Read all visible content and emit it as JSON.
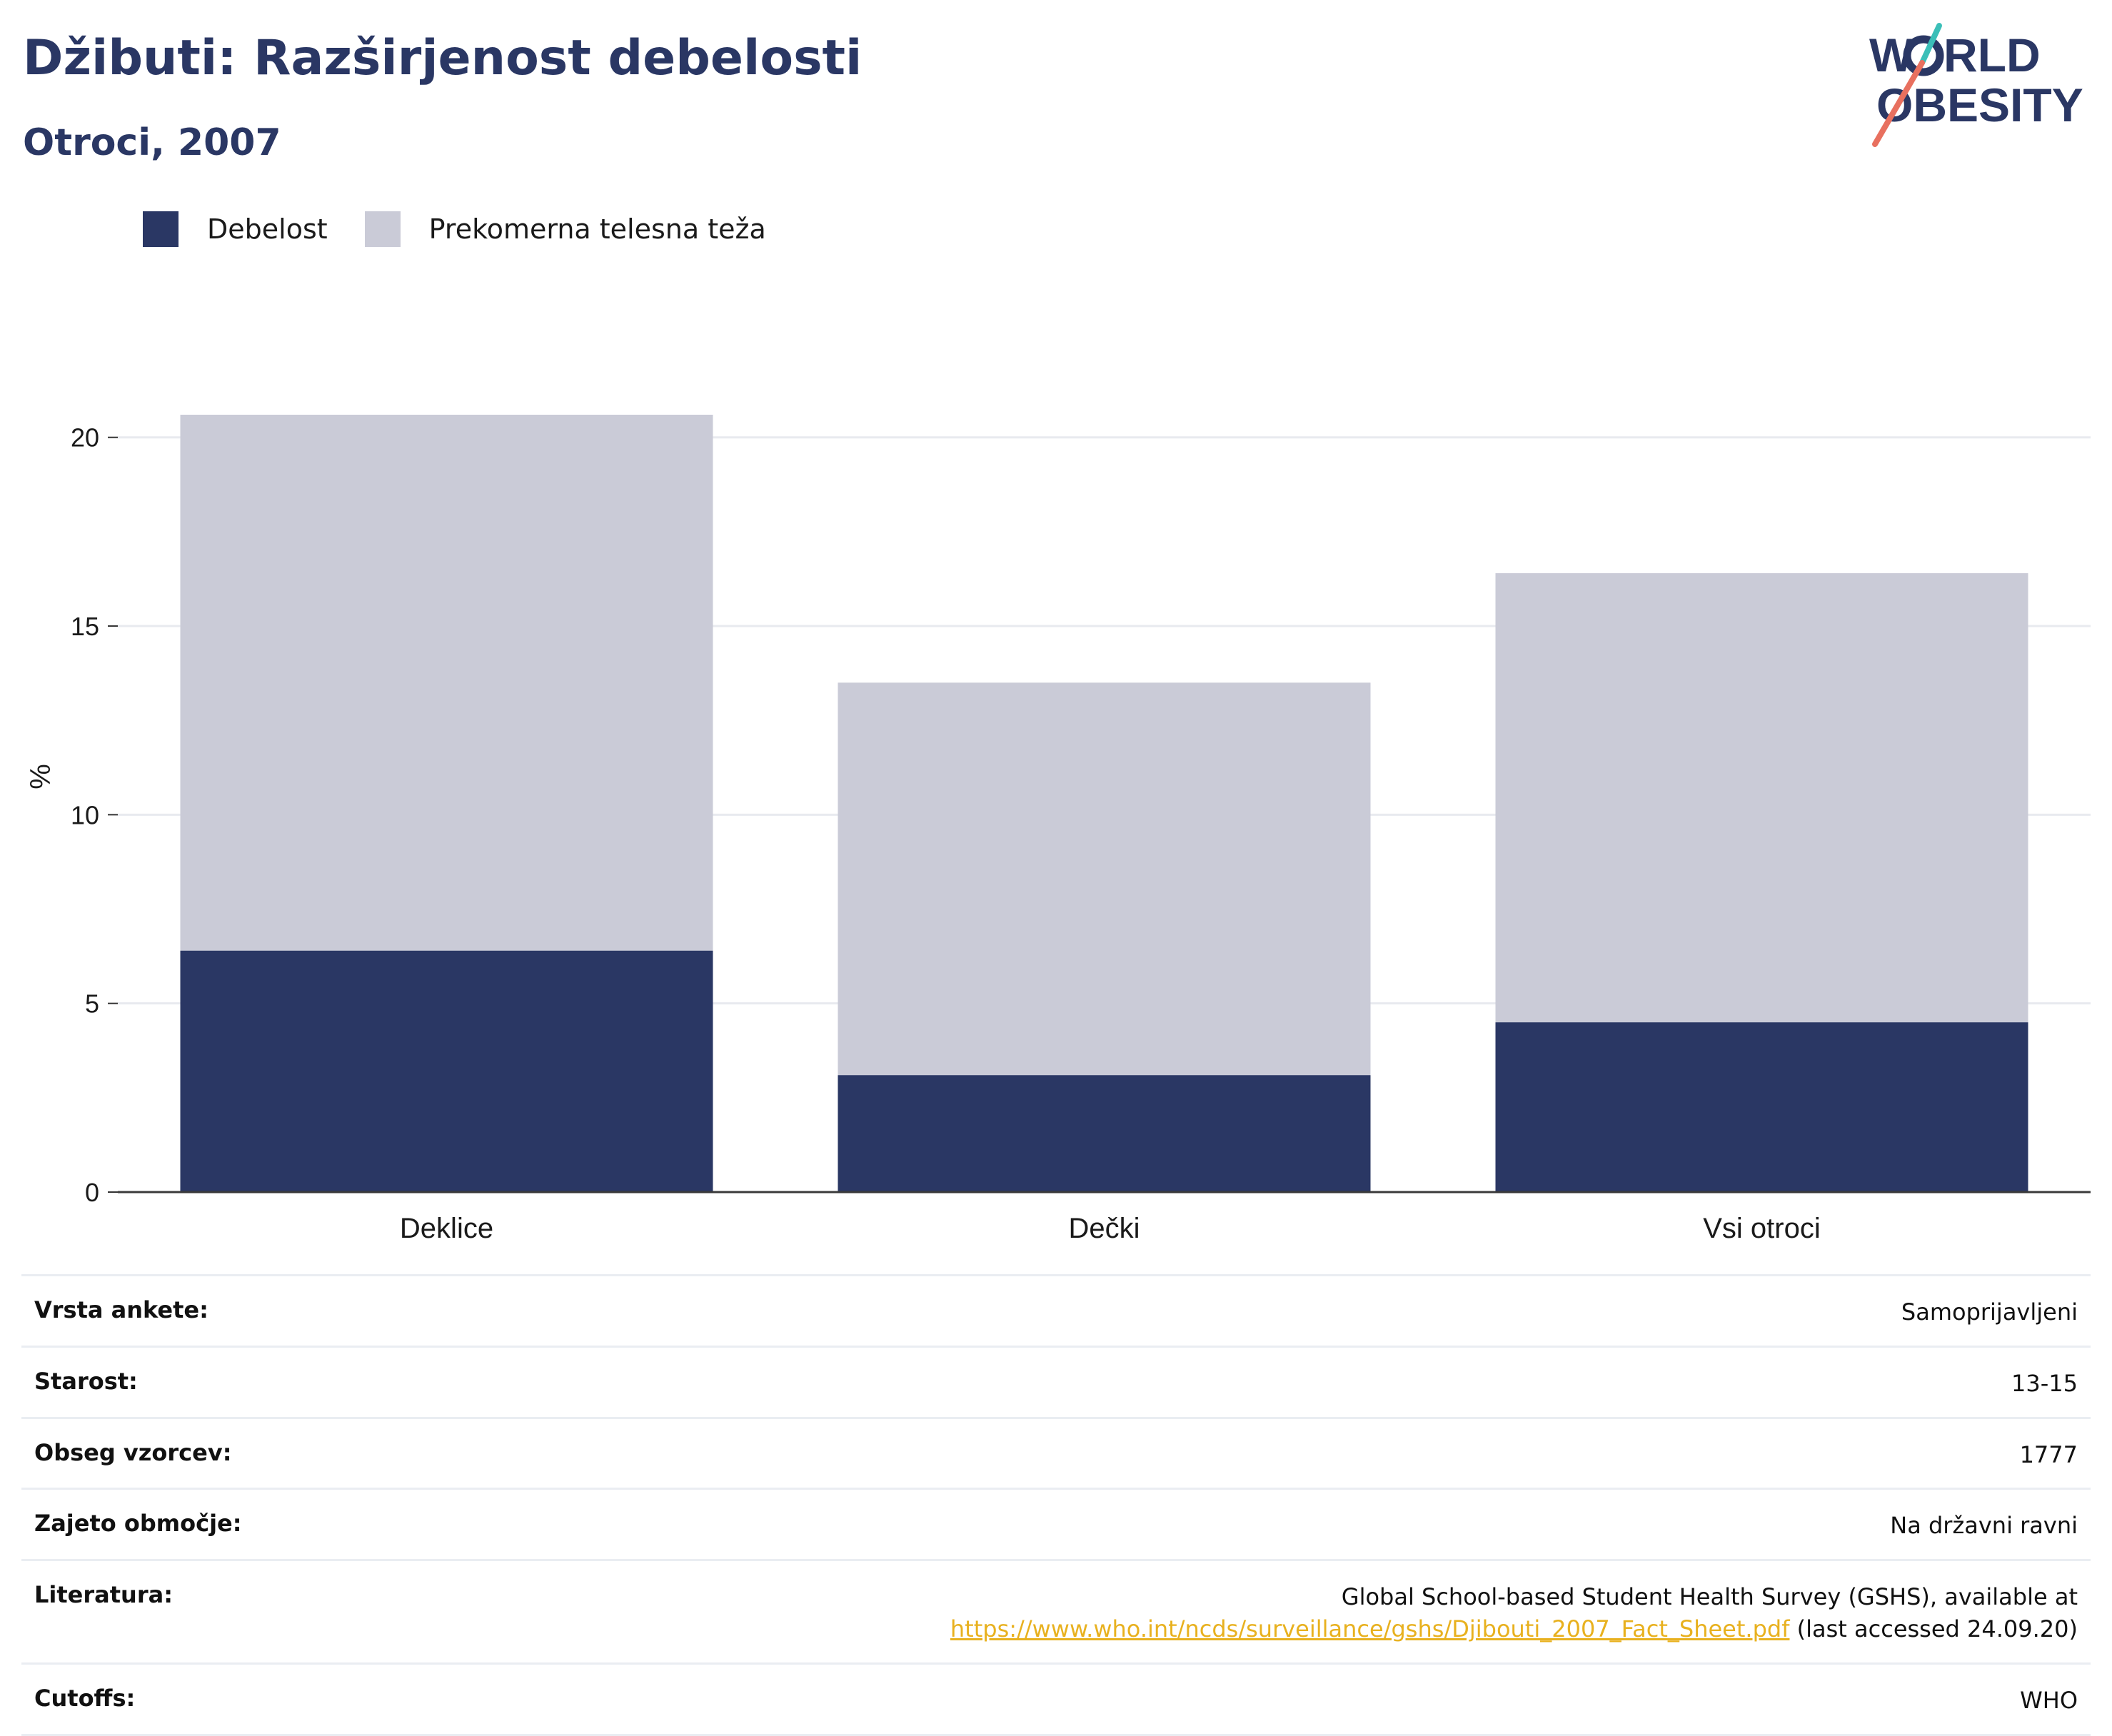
{
  "header": {
    "title": "Džibuti: Razširjenost debelosti",
    "subtitle": "Otroci, 2007"
  },
  "logo": {
    "line1_left": "W",
    "line1_right": "RLD",
    "line2": "OBESITY",
    "colors": {
      "text": "#2a3764",
      "teal": "#3bbfb8",
      "coral": "#e8705f"
    }
  },
  "legend": {
    "items": [
      {
        "label": "Debelost",
        "color": "#2a3764"
      },
      {
        "label": "Prekomerna telesna teža",
        "color": "#cacbd7"
      }
    ]
  },
  "chart_data": {
    "type": "bar",
    "stacked": true,
    "categories": [
      "Deklice",
      "Dečki",
      "Vsi otroci"
    ],
    "series": [
      {
        "name": "Debelost",
        "values": [
          6.4,
          3.1,
          4.5
        ],
        "color": "#2a3764"
      },
      {
        "name": "Prekomerna telesna teža",
        "values": [
          14.2,
          10.4,
          11.9
        ],
        "color": "#cacbd7"
      }
    ],
    "ylabel": "%",
    "ylim": [
      0,
      22
    ],
    "yticks": [
      0,
      5,
      10,
      15,
      20
    ],
    "grid": true
  },
  "info": {
    "rows": [
      {
        "label": "Vrsta ankete:",
        "value": "Samoprijavljeni"
      },
      {
        "label": "Starost:",
        "value": "13-15"
      },
      {
        "label": "Obseg vzorcev:",
        "value": "1777"
      },
      {
        "label": "Zajeto območje:",
        "value": "Na državni ravni"
      }
    ],
    "reference": {
      "label": "Literatura:",
      "line1": "Global School-based Student Health Survey (GSHS), available at",
      "link": "https://www.who.int/ncds/surveillance/gshs/Djibouti_2007_Fact_Sheet.pdf",
      "suffix": " (last accessed 24.09.20)"
    },
    "cutoffs": {
      "label": "Cutoffs:",
      "value": "WHO"
    }
  }
}
